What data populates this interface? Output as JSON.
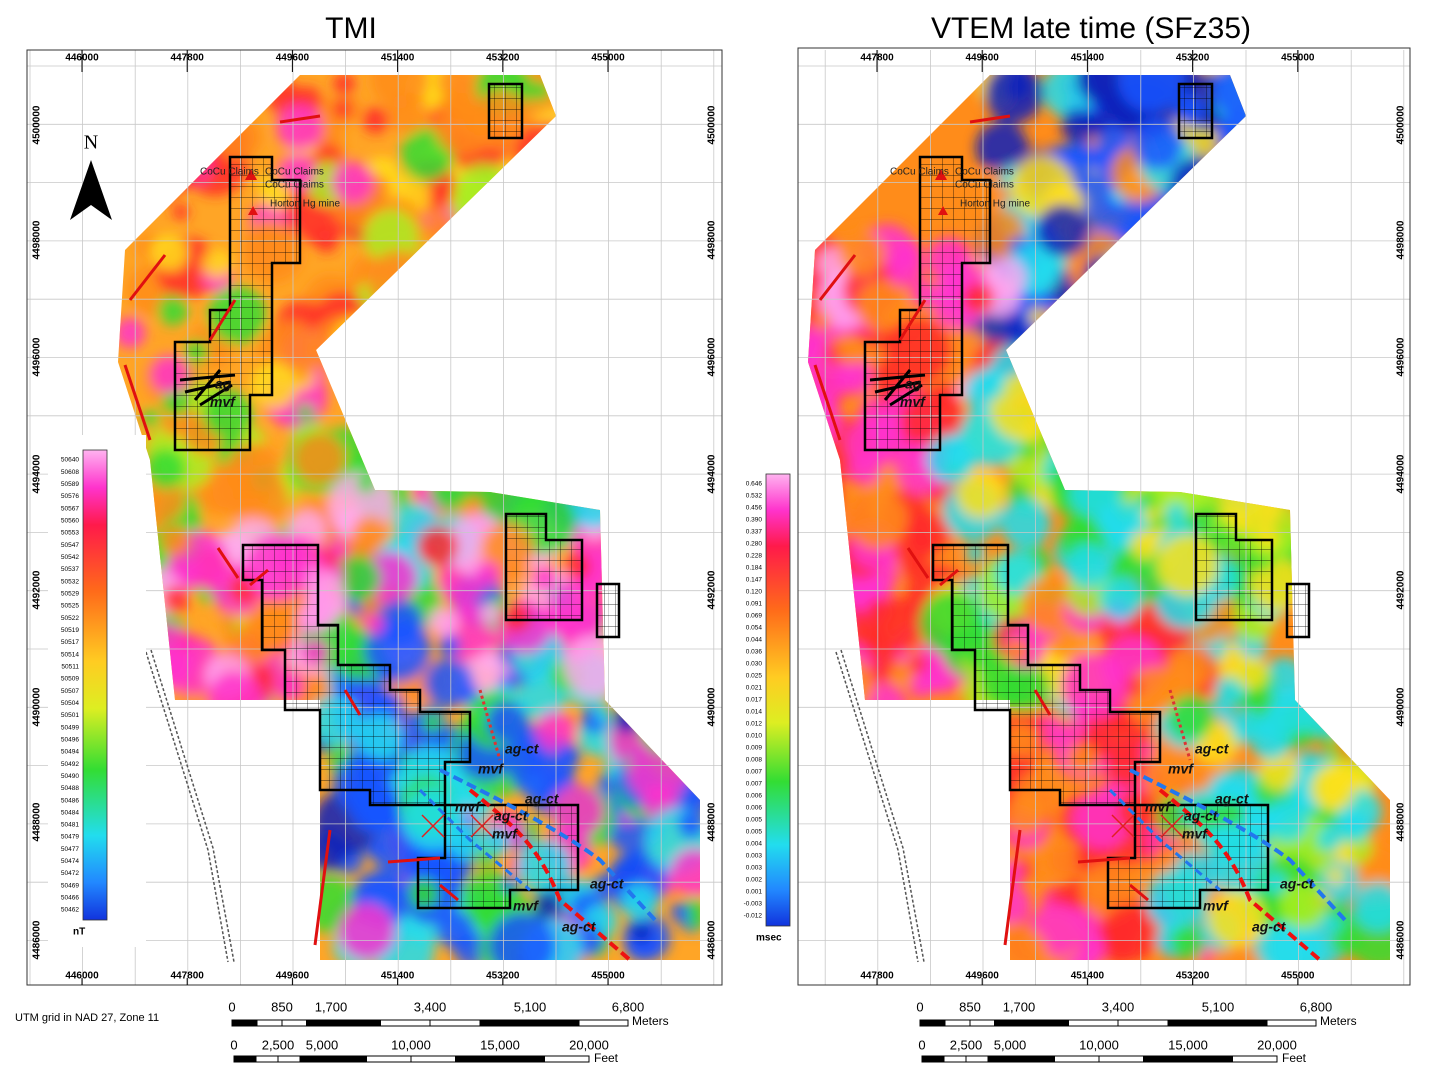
{
  "panels": [
    {
      "title": "TMI",
      "xticks": [
        "446000",
        "447800",
        "449600",
        "451400",
        "453200",
        "455000"
      ],
      "yticks": [
        "4500000",
        "4498000",
        "4496000",
        "4494000",
        "4492000",
        "4490000",
        "4488000",
        "4486000"
      ],
      "legend_labels": [
        "50640",
        "50608",
        "50589",
        "50576",
        "50567",
        "50560",
        "50553",
        "50547",
        "50542",
        "50537",
        "50532",
        "50529",
        "50525",
        "50522",
        "50519",
        "50517",
        "50514",
        "50511",
        "50509",
        "50507",
        "50504",
        "50501",
        "50499",
        "50496",
        "50494",
        "50492",
        "50490",
        "50488",
        "50486",
        "50484",
        "50481",
        "50479",
        "50477",
        "50474",
        "50472",
        "50469",
        "50466",
        "50462"
      ],
      "legend_unit": "nT",
      "north": "N",
      "places": [
        "CoCu Claims",
        "CoCu Claims",
        "CoCu Claims",
        "Horton Hg mine"
      ],
      "annotations": [
        "ag-ct",
        "mvf",
        "ag-ct",
        "mvf",
        "ag-ct",
        "mvf",
        "ag-ct",
        "mvf",
        "ag-ct",
        "mvf",
        "ag"
      ]
    },
    {
      "title": "VTEM late time (SFz35)",
      "xticks": [
        "447800",
        "449600",
        "451400",
        "453200",
        "455000"
      ],
      "yticks": [
        "4500000",
        "4498000",
        "4496000",
        "4494000",
        "4492000",
        "4490000",
        "4488000",
        "4486000"
      ],
      "legend_labels": [
        "0.646",
        "0.532",
        "0.456",
        "0.390",
        "0.337",
        "0.280",
        "0.228",
        "0.184",
        "0.147",
        "0.120",
        "0.091",
        "0.069",
        "0.054",
        "0.044",
        "0.036",
        "0.030",
        "0.025",
        "0.021",
        "0.017",
        "0.014",
        "0.012",
        "0.010",
        "0.009",
        "0.008",
        "0.007",
        "0.007",
        "0.006",
        "0.006",
        "0.005",
        "0.005",
        "0.004",
        "0.003",
        "0.003",
        "0.002",
        "0.001",
        "-0.003",
        "-0.012"
      ],
      "legend_unit": "msec",
      "places": [
        "CoCu Claims",
        "CoCu Claims",
        "CoCu Claims",
        "Horton Hg mine"
      ],
      "annotations": [
        "ag-ct",
        "mvf",
        "ag-ct",
        "mvf",
        "ag-ct",
        "mvf",
        "ag-ct",
        "mvf",
        "ag-ct",
        "mvf",
        "ag"
      ]
    }
  ],
  "grid_note": "UTM grid in NAD 27, Zone 11",
  "scale_bars": [
    {
      "meters": [
        "0",
        "850",
        "1,700",
        "3,400",
        "5,100",
        "6,800"
      ],
      "meters_unit": "Meters",
      "feet": [
        "0",
        "2,500",
        "5,000",
        "10,000",
        "15,000",
        "20,000"
      ],
      "feet_unit": "Feet"
    },
    {
      "meters": [
        "0",
        "850",
        "1,700",
        "3,400",
        "5,100",
        "6,800"
      ],
      "meters_unit": "Meters",
      "feet": [
        "0",
        "2,500",
        "5,000",
        "10,000",
        "15,000",
        "20,000"
      ],
      "feet_unit": "Feet"
    }
  ]
}
